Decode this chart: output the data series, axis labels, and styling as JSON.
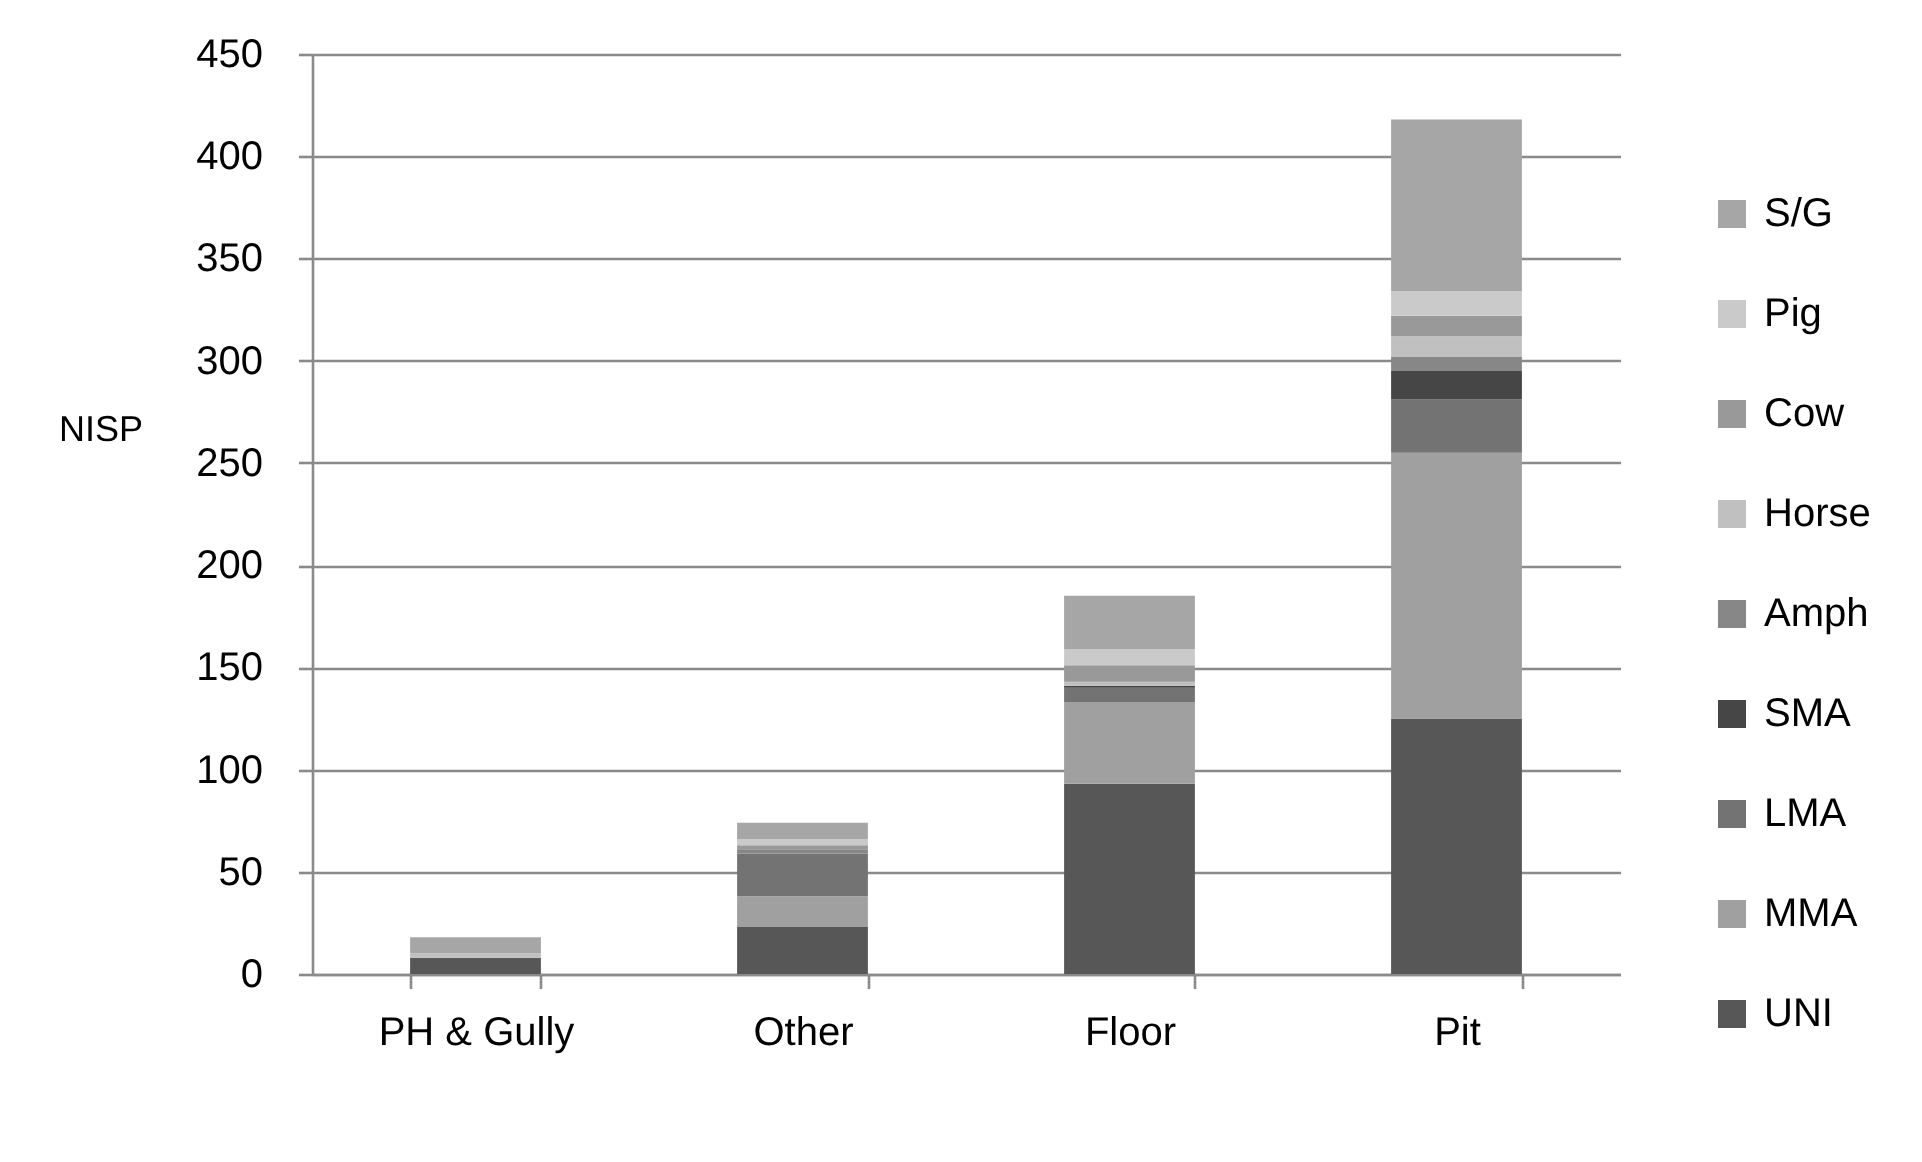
{
  "chart_data": {
    "type": "bar",
    "stacked": true,
    "ylabel": "NISP",
    "categories": [
      "PH & Gully",
      "Other",
      "Floor",
      "Pit"
    ],
    "series": [
      {
        "name": "UNI",
        "color": "#575757",
        "values": [
          8,
          23,
          93,
          125
        ]
      },
      {
        "name": "MMA",
        "color": "#a0a0a0",
        "values": [
          0,
          15,
          40,
          130
        ]
      },
      {
        "name": "LMA",
        "color": "#737373",
        "values": [
          0,
          21,
          7,
          26
        ]
      },
      {
        "name": "SMA",
        "color": "#464646",
        "values": [
          0,
          0,
          1,
          14
        ]
      },
      {
        "name": "Amph",
        "color": "#878787",
        "values": [
          0,
          2,
          0,
          7
        ]
      },
      {
        "name": "Horse",
        "color": "#c0c0c0",
        "values": [
          2,
          0,
          2,
          10
        ]
      },
      {
        "name": "Cow",
        "color": "#999999",
        "values": [
          0,
          2,
          8,
          10
        ]
      },
      {
        "name": "Pig",
        "color": "#cacaca",
        "values": [
          0,
          3,
          8,
          12
        ]
      },
      {
        "name": "S/G",
        "color": "#a6a6a6",
        "values": [
          8,
          8,
          26,
          84
        ]
      }
    ],
    "ylim": [
      0,
      450
    ],
    "yticks": [
      0,
      50,
      100,
      150,
      200,
      250,
      300,
      350,
      400,
      450
    ],
    "grid": "y",
    "legend": "right"
  }
}
